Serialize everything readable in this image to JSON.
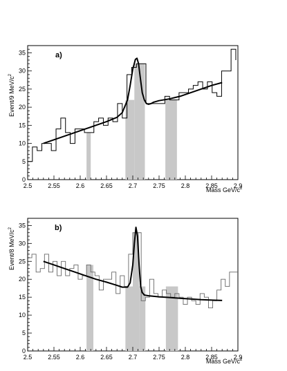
{
  "chart_data": [
    {
      "type": "histogram",
      "panel_label": "a)",
      "xlabel": "Mass GeV/c",
      "xlabel_superscript": "2",
      "ylabel": "Event/9 MeV/c",
      "ylabel_superscript": "2",
      "xlim": [
        2.5,
        2.9
      ],
      "ylim": [
        0,
        37
      ],
      "x_ticks": [
        2.5,
        2.55,
        2.6,
        2.65,
        2.7,
        2.75,
        2.8,
        2.85,
        2.9
      ],
      "x_tick_labels": [
        "2.5",
        "2.55",
        "2.6",
        "2.65",
        "2.7",
        "2.75",
        "2.8",
        "2.85",
        "2.9"
      ],
      "y_ticks": [
        0,
        5,
        10,
        15,
        20,
        25,
        30,
        35
      ],
      "y_tick_labels": [
        "0",
        "5",
        "10",
        "15",
        "20",
        "25",
        "30",
        "35"
      ],
      "shaded_bins": [
        {
          "x0": 2.612,
          "x1": 2.62,
          "height": 13
        },
        {
          "x0": 2.686,
          "x1": 2.703,
          "height": 22
        },
        {
          "x0": 2.703,
          "x1": 2.723,
          "height": 32
        },
        {
          "x0": 2.762,
          "x1": 2.784,
          "height": 22
        }
      ],
      "histogram": {
        "bin_edges": [
          2.5,
          2.509,
          2.518,
          2.527,
          2.536,
          2.545,
          2.554,
          2.563,
          2.572,
          2.581,
          2.59,
          2.599,
          2.608,
          2.617,
          2.626,
          2.635,
          2.644,
          2.653,
          2.662,
          2.671,
          2.68,
          2.689,
          2.698,
          2.707,
          2.716,
          2.725,
          2.734,
          2.743,
          2.752,
          2.761,
          2.77,
          2.779,
          2.788,
          2.797,
          2.806,
          2.815,
          2.824,
          2.833,
          2.842,
          2.851,
          2.86,
          2.869,
          2.878,
          2.887,
          2.896
        ],
        "counts": [
          5,
          9,
          8,
          10,
          10,
          8,
          14,
          17,
          13,
          10,
          14,
          14,
          13,
          13,
          16,
          17,
          15,
          17,
          16,
          21,
          17,
          29,
          31,
          32,
          32,
          21,
          21,
          21,
          21,
          23,
          22,
          22,
          24,
          24,
          25,
          26,
          27,
          25,
          27,
          24,
          23,
          30,
          30,
          36,
          33
        ]
      },
      "fit": {
        "x": [
          2.53,
          2.55,
          2.57,
          2.59,
          2.61,
          2.63,
          2.65,
          2.67,
          2.68,
          2.69,
          2.695,
          2.7,
          2.705,
          2.708,
          2.711,
          2.714,
          2.718,
          2.722,
          2.726,
          2.73,
          2.735,
          2.74,
          2.75,
          2.77,
          2.79,
          2.81,
          2.83,
          2.85,
          2.87
        ],
        "y": [
          10,
          11,
          12,
          13,
          14,
          15,
          16,
          17.2,
          18.5,
          22,
          26,
          30.5,
          33.2,
          33.5,
          32,
          28.5,
          24,
          22,
          21,
          20.8,
          21,
          21.4,
          21.8,
          22.3,
          23,
          24,
          25,
          26,
          26.8
        ]
      }
    },
    {
      "type": "histogram",
      "panel_label": "b)",
      "xlabel": "Mass GeV/c",
      "xlabel_superscript": "2",
      "ylabel": "Event/8 MeV/c",
      "ylabel_superscript": "2",
      "xlim": [
        2.5,
        2.9
      ],
      "ylim": [
        0,
        37
      ],
      "x_ticks": [
        2.5,
        2.55,
        2.6,
        2.65,
        2.7,
        2.75,
        2.8,
        2.85,
        2.9
      ],
      "x_tick_labels": [
        "2.5",
        "2.55",
        "2.6",
        "2.65",
        "2.7",
        "2.75",
        "2.8",
        "2.85",
        "2.9"
      ],
      "y_ticks": [
        0,
        5,
        10,
        15,
        20,
        25,
        30,
        35
      ],
      "y_tick_labels": [
        "0",
        "5",
        "10",
        "15",
        "20",
        "25",
        "30",
        "35"
      ],
      "shaded_bins": [
        {
          "x0": 2.612,
          "x1": 2.625,
          "height": 24
        },
        {
          "x0": 2.686,
          "x1": 2.7,
          "height": 18
        },
        {
          "x0": 2.7,
          "x1": 2.712,
          "height": 33
        },
        {
          "x0": 2.712,
          "x1": 2.724,
          "height": 18
        },
        {
          "x0": 2.763,
          "x1": 2.786,
          "height": 18
        }
      ],
      "histogram": {
        "bin_edges": [
          2.5,
          2.508,
          2.516,
          2.524,
          2.532,
          2.54,
          2.548,
          2.556,
          2.564,
          2.572,
          2.58,
          2.588,
          2.596,
          2.604,
          2.612,
          2.62,
          2.628,
          2.636,
          2.644,
          2.652,
          2.66,
          2.668,
          2.676,
          2.684,
          2.692,
          2.7,
          2.708,
          2.716,
          2.724,
          2.732,
          2.74,
          2.748,
          2.756,
          2.764,
          2.772,
          2.78,
          2.788,
          2.796,
          2.804,
          2.812,
          2.82,
          2.828,
          2.836,
          2.844,
          2.852,
          2.86,
          2.868,
          2.876,
          2.884,
          2.892,
          2.9
        ],
        "counts": [
          26,
          27,
          22,
          23,
          27,
          22,
          25,
          21,
          25,
          21,
          23,
          24,
          20,
          21,
          24,
          22,
          21,
          17,
          20,
          20,
          22,
          16,
          21,
          18,
          27,
          33,
          33,
          14,
          15,
          20,
          16,
          15,
          17,
          16,
          15,
          16,
          15,
          13,
          15,
          14,
          13,
          16,
          15,
          12,
          14,
          17,
          20,
          18,
          22,
          22
        ]
      },
      "fit": {
        "x": [
          2.53,
          2.55,
          2.57,
          2.59,
          2.61,
          2.63,
          2.65,
          2.67,
          2.68,
          2.69,
          2.695,
          2.7,
          2.703,
          2.706,
          2.709,
          2.712,
          2.715,
          2.718,
          2.722,
          2.73,
          2.75,
          2.77,
          2.79,
          2.81,
          2.83,
          2.85,
          2.87
        ],
        "y": [
          25,
          24,
          23,
          22,
          21,
          20,
          19.2,
          18.3,
          17.8,
          17.8,
          19,
          24,
          30,
          34.5,
          32,
          24,
          18,
          16.3,
          15.6,
          15.4,
          15.1,
          14.9,
          14.7,
          14.5,
          14.3,
          14.2,
          14.1
        ]
      }
    }
  ]
}
